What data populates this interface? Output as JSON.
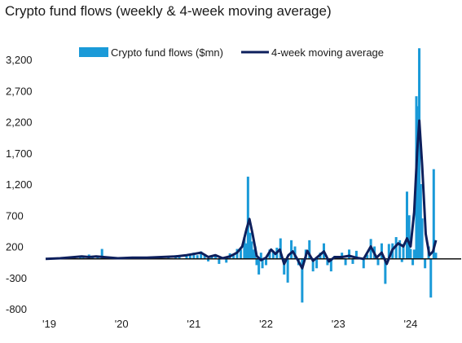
{
  "title": "Crypto fund flows (weekly & 4-week moving average)",
  "colors": {
    "bars": "#1a9ad8",
    "line": "#0d1f5c",
    "zero_line": "#111111"
  },
  "chart_data": {
    "type": "bar",
    "title": "Crypto fund flows (weekly & 4-week moving average)",
    "xlabel": "",
    "ylabel": "",
    "ylim": [
      -800,
      3300
    ],
    "yticks": [
      3200,
      2700,
      2200,
      1700,
      1200,
      700,
      200,
      -300,
      -800
    ],
    "ytick_labels": [
      "3,200",
      "2,700",
      "2,200",
      "1,700",
      "1,200",
      "700",
      "200",
      "-300",
      "-800"
    ],
    "xtick_labels": [
      "'19",
      "'20",
      "'21",
      "'22",
      "'23",
      "'24"
    ],
    "xlim": [
      2019.0,
      2024.75
    ],
    "legend": {
      "placement": "top"
    },
    "series": [
      {
        "name": "Crypto fund flows ($mn)",
        "kind": "bar",
        "points": [
          [
            2019.4,
            40
          ],
          [
            2019.48,
            50
          ],
          [
            2019.52,
            40
          ],
          [
            2019.6,
            70
          ],
          [
            2019.65,
            40
          ],
          [
            2019.72,
            30
          ],
          [
            2019.78,
            160
          ],
          [
            2019.9,
            30
          ],
          [
            2020.2,
            30
          ],
          [
            2020.4,
            30
          ],
          [
            2020.5,
            40
          ],
          [
            2020.6,
            40
          ],
          [
            2020.7,
            50
          ],
          [
            2020.8,
            60
          ],
          [
            2020.85,
            50
          ],
          [
            2020.95,
            70
          ],
          [
            2021.0,
            80
          ],
          [
            2021.05,
            100
          ],
          [
            2021.1,
            60
          ],
          [
            2021.15,
            120
          ],
          [
            2021.2,
            80
          ],
          [
            2021.25,
            -40
          ],
          [
            2021.3,
            60
          ],
          [
            2021.35,
            50
          ],
          [
            2021.4,
            -80
          ],
          [
            2021.45,
            30
          ],
          [
            2021.5,
            -60
          ],
          [
            2021.55,
            90
          ],
          [
            2021.6,
            60
          ],
          [
            2021.65,
            160
          ],
          [
            2021.7,
            150
          ],
          [
            2021.75,
            350
          ],
          [
            2021.78,
            250
          ],
          [
            2021.8,
            1320
          ],
          [
            2021.83,
            420
          ],
          [
            2021.85,
            280
          ],
          [
            2021.88,
            150
          ],
          [
            2021.9,
            200
          ],
          [
            2021.92,
            -100
          ],
          [
            2021.95,
            -250
          ],
          [
            2021.98,
            100
          ],
          [
            2022.0,
            -150
          ],
          [
            2022.05,
            -100
          ],
          [
            2022.1,
            150
          ],
          [
            2022.15,
            130
          ],
          [
            2022.2,
            180
          ],
          [
            2022.25,
            330
          ],
          [
            2022.3,
            -250
          ],
          [
            2022.35,
            -380
          ],
          [
            2022.4,
            300
          ],
          [
            2022.45,
            200
          ],
          [
            2022.5,
            -100
          ],
          [
            2022.55,
            -700
          ],
          [
            2022.6,
            150
          ],
          [
            2022.65,
            300
          ],
          [
            2022.7,
            -200
          ],
          [
            2022.75,
            -150
          ],
          [
            2022.8,
            100
          ],
          [
            2022.85,
            250
          ],
          [
            2022.9,
            -100
          ],
          [
            2022.95,
            -200
          ],
          [
            2023.0,
            50
          ],
          [
            2023.1,
            100
          ],
          [
            2023.15,
            -100
          ],
          [
            2023.2,
            150
          ],
          [
            2023.25,
            -80
          ],
          [
            2023.3,
            130
          ],
          [
            2023.4,
            -150
          ],
          [
            2023.45,
            70
          ],
          [
            2023.5,
            320
          ],
          [
            2023.55,
            200
          ],
          [
            2023.6,
            -100
          ],
          [
            2023.65,
            250
          ],
          [
            2023.7,
            -400
          ],
          [
            2023.75,
            240
          ],
          [
            2023.8,
            250
          ],
          [
            2023.85,
            350
          ],
          [
            2023.9,
            300
          ],
          [
            2023.93,
            -50
          ],
          [
            2023.95,
            240
          ],
          [
            2024.0,
            1080
          ],
          [
            2024.03,
            700
          ],
          [
            2024.05,
            160
          ],
          [
            2024.08,
            -100
          ],
          [
            2024.1,
            150
          ],
          [
            2024.13,
            2610
          ],
          [
            2024.15,
            2450
          ],
          [
            2024.17,
            3380
          ],
          [
            2024.19,
            1200
          ],
          [
            2024.21,
            650
          ],
          [
            2024.25,
            -150
          ],
          [
            2024.3,
            200
          ],
          [
            2024.33,
            -620
          ],
          [
            2024.37,
            1440
          ],
          [
            2024.4,
            100
          ]
        ]
      },
      {
        "name": "4-week moving average",
        "kind": "line",
        "points": [
          [
            2019.0,
            0
          ],
          [
            2019.1,
            5
          ],
          [
            2019.2,
            10
          ],
          [
            2019.3,
            20
          ],
          [
            2019.4,
            30
          ],
          [
            2019.5,
            40
          ],
          [
            2019.6,
            30
          ],
          [
            2019.7,
            40
          ],
          [
            2019.8,
            30
          ],
          [
            2019.9,
            20
          ],
          [
            2020.0,
            10
          ],
          [
            2020.2,
            20
          ],
          [
            2020.4,
            20
          ],
          [
            2020.6,
            30
          ],
          [
            2020.8,
            40
          ],
          [
            2020.95,
            60
          ],
          [
            2021.05,
            80
          ],
          [
            2021.15,
            100
          ],
          [
            2021.25,
            30
          ],
          [
            2021.35,
            60
          ],
          [
            2021.45,
            10
          ],
          [
            2021.55,
            40
          ],
          [
            2021.65,
            100
          ],
          [
            2021.72,
            200
          ],
          [
            2021.78,
            480
          ],
          [
            2021.82,
            640
          ],
          [
            2021.86,
            420
          ],
          [
            2021.92,
            50
          ],
          [
            2021.98,
            -20
          ],
          [
            2022.05,
            20
          ],
          [
            2022.12,
            150
          ],
          [
            2022.18,
            80
          ],
          [
            2022.24,
            150
          ],
          [
            2022.3,
            -80
          ],
          [
            2022.36,
            60
          ],
          [
            2022.42,
            120
          ],
          [
            2022.48,
            0
          ],
          [
            2022.55,
            -150
          ],
          [
            2022.62,
            130
          ],
          [
            2022.7,
            -30
          ],
          [
            2022.78,
            50
          ],
          [
            2022.85,
            120
          ],
          [
            2022.92,
            -40
          ],
          [
            2023.0,
            30
          ],
          [
            2023.1,
            30
          ],
          [
            2023.2,
            50
          ],
          [
            2023.3,
            20
          ],
          [
            2023.4,
            0
          ],
          [
            2023.5,
            200
          ],
          [
            2023.58,
            20
          ],
          [
            2023.65,
            100
          ],
          [
            2023.72,
            -80
          ],
          [
            2023.8,
            150
          ],
          [
            2023.88,
            250
          ],
          [
            2023.95,
            200
          ],
          [
            2024.0,
            330
          ],
          [
            2024.05,
            200
          ],
          [
            2024.1,
            750
          ],
          [
            2024.14,
            1700
          ],
          [
            2024.17,
            2220
          ],
          [
            2024.21,
            1500
          ],
          [
            2024.26,
            400
          ],
          [
            2024.31,
            60
          ],
          [
            2024.36,
            120
          ],
          [
            2024.4,
            300
          ]
        ]
      }
    ]
  }
}
